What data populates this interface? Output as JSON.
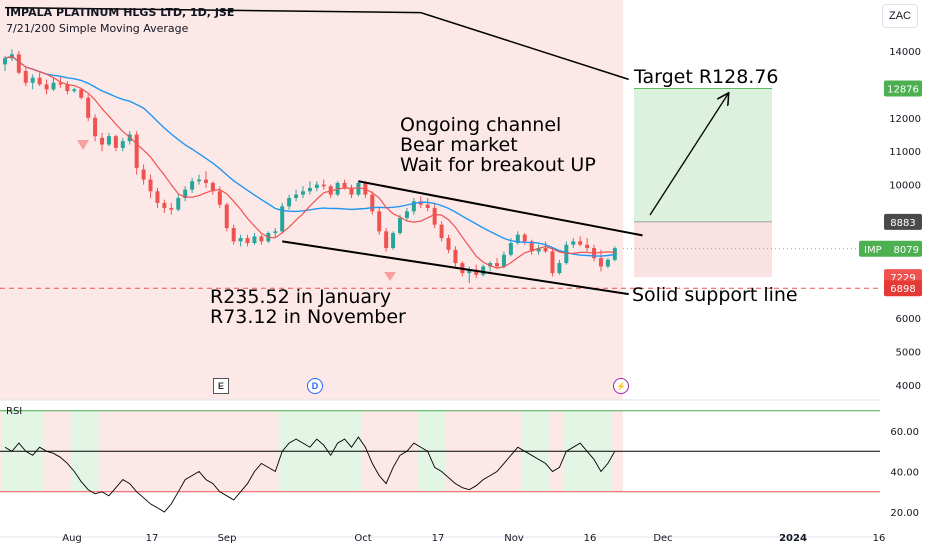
{
  "header": {
    "title": "IMPALA PLATINUM HLGS LTD, 1D, JSE",
    "subtitle": "7/21/200 Simple Moving Average"
  },
  "currency": "ZAC",
  "annotations": {
    "target": "Target R128.76",
    "channel": [
      "Ongoing channel",
      "Bear market",
      "Wait for breakout UP"
    ],
    "history": [
      "R235.52 in January",
      "R73.12 in November"
    ],
    "support": "Solid support line"
  },
  "price_labels": {
    "target": "12876",
    "entry": "8883",
    "ticker": "IMP",
    "last": "8079",
    "stop": "7229",
    "support": "6898"
  },
  "events": [
    "E",
    "D",
    "⚡"
  ],
  "rsi_title": "RSI",
  "colors": {
    "up": "#26a69a",
    "down": "#ef5350",
    "sma7": "#ef5350",
    "sma21": "#2196f3",
    "sma200": "#000000",
    "bg_red": "#fde8e8",
    "bg_green": "#e3f5e5",
    "ticker_label": "#4caf50"
  },
  "chart_data": [
    {
      "type": "candlestick",
      "title": "IMPALA PLATINUM HLGS LTD, 1D, JSE",
      "y_axis_ticks": [
        4000,
        5000,
        6000,
        7000,
        8000,
        9000,
        10000,
        11000,
        12000,
        13000,
        14000
      ],
      "ylim": [
        3700,
        15000
      ],
      "x_tick_labels": [
        "Aug",
        "17",
        "Sep",
        "17",
        "Oct",
        "17",
        "Nov",
        "16",
        "Dec",
        "2024",
        "16"
      ],
      "sma200": [
        [
          0,
          15300
        ],
        [
          60,
          15150
        ],
        [
          90,
          13150
        ]
      ],
      "channel_upper": [
        [
          51,
          10100
        ],
        [
          92,
          8480
        ]
      ],
      "channel_lower": [
        [
          40,
          8300
        ],
        [
          90,
          6720
        ]
      ],
      "support_level": 6898,
      "target_level": 12876,
      "entry_level": 8883,
      "stop_level": 7229,
      "last_close": 8079,
      "candles": [
        [
          13600,
          13850,
          13400,
          13780
        ],
        [
          13780,
          14050,
          13700,
          13900
        ],
        [
          13900,
          14000,
          13300,
          13350
        ],
        [
          13400,
          13500,
          12950,
          13050
        ],
        [
          13050,
          13300,
          12850,
          13200
        ],
        [
          13200,
          13350,
          12950,
          13000
        ],
        [
          13000,
          13150,
          12700,
          12850
        ],
        [
          12850,
          13200,
          12800,
          13050
        ],
        [
          13050,
          13250,
          12900,
          13000
        ],
        [
          13000,
          13100,
          12700,
          12800
        ],
        [
          12800,
          12900,
          12750,
          12850
        ],
        [
          12850,
          12900,
          12550,
          12600
        ],
        [
          12600,
          12700,
          11900,
          12000
        ],
        [
          12000,
          12100,
          11300,
          11450
        ],
        [
          11400,
          11550,
          11000,
          11200
        ],
        [
          11200,
          11550,
          11150,
          11450
        ],
        [
          11450,
          11500,
          11000,
          11100
        ],
        [
          11100,
          11400,
          11000,
          11300
        ],
        [
          11300,
          11600,
          11200,
          11500
        ],
        [
          11500,
          11600,
          10300,
          10500
        ],
        [
          10450,
          10600,
          10000,
          10150
        ],
        [
          10150,
          10300,
          9600,
          9800
        ],
        [
          9800,
          9900,
          9300,
          9450
        ],
        [
          9450,
          9550,
          9150,
          9300
        ],
        [
          9300,
          9450,
          9100,
          9250
        ],
        [
          9250,
          9700,
          9200,
          9600
        ],
        [
          9600,
          9950,
          9500,
          9850
        ],
        [
          9850,
          10200,
          9750,
          10100
        ],
        [
          10100,
          10300,
          10000,
          10150
        ],
        [
          10150,
          10400,
          9900,
          10050
        ],
        [
          10050,
          10100,
          9700,
          9800
        ],
        [
          9800,
          9950,
          9300,
          9400
        ],
        [
          9400,
          9450,
          8600,
          8700
        ],
        [
          8700,
          8800,
          8200,
          8300
        ],
        [
          8300,
          8500,
          8150,
          8400
        ],
        [
          8400,
          8500,
          8150,
          8250
        ],
        [
          8250,
          8550,
          8200,
          8450
        ],
        [
          8450,
          8500,
          8200,
          8300
        ],
        [
          8300,
          8600,
          8250,
          8550
        ],
        [
          8550,
          8700,
          8400,
          8600
        ],
        [
          8600,
          9450,
          8550,
          9350
        ],
        [
          9350,
          9700,
          9250,
          9600
        ],
        [
          9600,
          9850,
          9500,
          9700
        ],
        [
          9700,
          9950,
          9600,
          9800
        ],
        [
          9800,
          10100,
          9700,
          9900
        ],
        [
          9900,
          10100,
          9800,
          10000
        ],
        [
          10000,
          10150,
          9850,
          9950
        ],
        [
          9950,
          10000,
          9600,
          9700
        ],
        [
          9700,
          10100,
          9650,
          10050
        ],
        [
          10050,
          10150,
          9850,
          9900
        ],
        [
          9900,
          10000,
          9600,
          9700
        ],
        [
          9700,
          10100,
          9650,
          10050
        ],
        [
          10050,
          10100,
          9600,
          9700
        ],
        [
          9700,
          9800,
          9100,
          9200
        ],
        [
          9200,
          9300,
          8500,
          8600
        ],
        [
          8600,
          8700,
          8000,
          8100
        ],
        [
          8100,
          8600,
          8050,
          8550
        ],
        [
          8550,
          9100,
          8500,
          9000
        ],
        [
          9000,
          9300,
          8900,
          9200
        ],
        [
          9200,
          9600,
          9100,
          9500
        ],
        [
          9500,
          9650,
          9300,
          9400
        ],
        [
          9400,
          9600,
          9200,
          9300
        ],
        [
          9300,
          9450,
          8700,
          8800
        ],
        [
          8800,
          8900,
          8300,
          8400
        ],
        [
          8400,
          8500,
          7950,
          8050
        ],
        [
          8050,
          8150,
          7550,
          7650
        ],
        [
          7650,
          7700,
          7250,
          7350
        ],
        [
          7350,
          7550,
          7050,
          7450
        ],
        [
          7450,
          7600,
          7200,
          7300
        ],
        [
          7300,
          7600,
          7250,
          7550
        ],
        [
          7550,
          7700,
          7400,
          7650
        ],
        [
          7650,
          7800,
          7500,
          7550
        ],
        [
          7550,
          8000,
          7500,
          7900
        ],
        [
          7900,
          8400,
          7850,
          8250
        ],
        [
          8250,
          8600,
          8200,
          8500
        ],
        [
          8500,
          8550,
          8200,
          8300
        ],
        [
          8300,
          8350,
          7900,
          8000
        ],
        [
          8000,
          8200,
          7900,
          8100
        ],
        [
          8100,
          8300,
          7950,
          8000
        ],
        [
          8000,
          8100,
          7250,
          7350
        ],
        [
          7350,
          7750,
          7300,
          7650
        ],
        [
          7650,
          8300,
          7600,
          8200
        ],
        [
          8200,
          8400,
          8100,
          8300
        ],
        [
          8300,
          8450,
          8150,
          8200
        ],
        [
          8200,
          8400,
          8000,
          8100
        ],
        [
          8100,
          8200,
          7700,
          7800
        ],
        [
          7800,
          8050,
          7400,
          7550
        ],
        [
          7550,
          7800,
          7500,
          7750
        ],
        [
          7750,
          8150,
          7700,
          8100
        ]
      ]
    },
    {
      "type": "line",
      "title": "RSI",
      "y_axis_ticks": [
        20,
        40,
        60
      ],
      "ylim": [
        15,
        73
      ],
      "levels": [
        70,
        50,
        30
      ],
      "values": [
        52,
        50,
        54,
        50,
        48,
        52,
        50,
        49,
        47,
        44,
        40,
        35,
        31,
        29,
        30,
        28,
        32,
        36,
        34,
        30,
        27,
        24,
        22,
        20,
        24,
        30,
        36,
        38,
        40,
        36,
        34,
        30,
        28,
        26,
        30,
        34,
        40,
        44,
        42,
        40,
        50,
        54,
        56,
        54,
        52,
        56,
        53,
        48,
        54,
        56,
        52,
        57,
        52,
        44,
        38,
        34,
        42,
        48,
        50,
        54,
        52,
        50,
        42,
        40,
        37,
        34,
        32,
        31,
        33,
        36,
        38,
        40,
        44,
        48,
        52,
        50,
        48,
        46,
        44,
        40,
        42,
        50,
        52,
        54,
        50,
        46,
        40,
        44,
        50
      ],
      "bg_green_days": [
        0,
        1,
        2,
        3,
        4,
        5,
        10,
        11,
        12,
        13,
        40,
        41,
        42,
        43,
        44,
        45,
        46,
        47,
        48,
        49,
        50,
        51,
        60,
        61,
        62,
        63,
        75,
        76,
        77,
        78,
        81,
        82,
        83,
        84,
        85,
        86,
        87
      ]
    }
  ]
}
